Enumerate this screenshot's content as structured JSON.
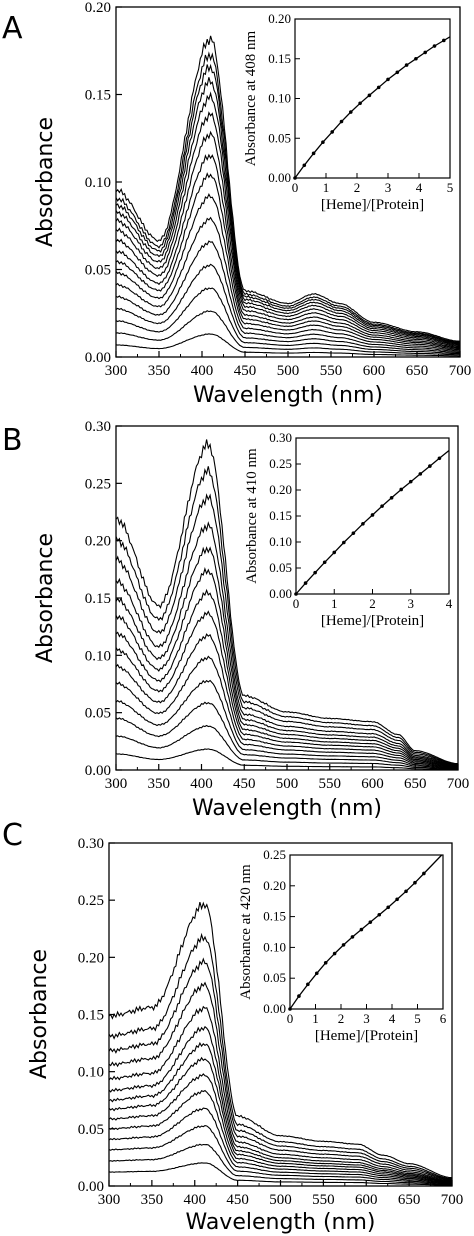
{
  "chart_data": [
    {
      "panel": "A",
      "type": "line",
      "xlabel": "Wavelength (nm)",
      "ylabel": "Absorbance",
      "xlim": [
        300,
        700
      ],
      "ylim": [
        0,
        0.2
      ],
      "xticks": [
        "300",
        "350",
        "400",
        "450",
        "500",
        "550",
        "600",
        "650",
        "700"
      ],
      "yticks": [
        "0.00",
        "0.05",
        "0.10",
        "0.15",
        "0.20"
      ],
      "peak_wavelength": 410,
      "spectra_peak_values": [
        0.013,
        0.026,
        0.039,
        0.052,
        0.065,
        0.078,
        0.091,
        0.103,
        0.114,
        0.126,
        0.137,
        0.147,
        0.156,
        0.164,
        0.171,
        0.18
      ],
      "shape": {
        "w300": 0.52,
        "w350": 0.36,
        "w410": 1.0,
        "w450": 0.2,
        "w500": 0.16,
        "w530": 0.19,
        "w560": 0.16,
        "w600": 0.1,
        "w650": 0.07,
        "w700": 0.04
      },
      "inset": {
        "type": "scatter",
        "xlabel": "[Heme]/[Protein]",
        "ylabel": "Absorbance at 408 nm",
        "xlim": [
          0,
          5
        ],
        "ylim": [
          0,
          0.2
        ],
        "xticks": [
          "0",
          "1",
          "2",
          "3",
          "4",
          "5"
        ],
        "yticks": [
          "0.00",
          "0.05",
          "0.10",
          "0.15",
          "0.20"
        ],
        "x": [
          0,
          0.3,
          0.6,
          0.9,
          1.2,
          1.5,
          1.8,
          2.1,
          2.4,
          2.7,
          3.0,
          3.3,
          3.6,
          3.9,
          4.2,
          4.5,
          4.8
        ],
        "y": [
          0,
          0.016,
          0.031,
          0.045,
          0.058,
          0.071,
          0.083,
          0.094,
          0.104,
          0.114,
          0.124,
          0.133,
          0.142,
          0.15,
          0.158,
          0.166,
          0.173
        ]
      }
    },
    {
      "panel": "B",
      "type": "line",
      "xlabel": "Wavelength (nm)",
      "ylabel": "Absorbance",
      "xlim": [
        300,
        700
      ],
      "ylim": [
        0,
        0.3
      ],
      "xticks": [
        "300",
        "350",
        "400",
        "450",
        "500",
        "550",
        "600",
        "650",
        "700"
      ],
      "yticks": [
        "0.00",
        "0.05",
        "0.10",
        "0.15",
        "0.20",
        "0.25",
        "0.30"
      ],
      "peak_wavelength": 408,
      "spectra_peak_values": [
        0.018,
        0.038,
        0.058,
        0.077,
        0.097,
        0.116,
        0.135,
        0.153,
        0.172,
        0.191,
        0.211,
        0.235,
        0.258,
        0.281
      ],
      "shape": {
        "w300": 0.77,
        "w350": 0.5,
        "w408": 1.0,
        "w450": 0.22,
        "w500": 0.17,
        "w550": 0.15,
        "w600": 0.14,
        "w630": 0.1,
        "w650": 0.05,
        "w700": 0.01
      },
      "inset": {
        "type": "scatter",
        "xlabel": "[Heme]/[Protein]",
        "ylabel": "Absorbance at 410 nm",
        "xlim": [
          0,
          4
        ],
        "ylim": [
          0,
          0.3
        ],
        "xticks": [
          "0",
          "1",
          "2",
          "3",
          "4"
        ],
        "yticks": [
          "0.00",
          "0.05",
          "0.10",
          "0.15",
          "0.20",
          "0.25",
          "0.30"
        ],
        "x": [
          0,
          0.25,
          0.5,
          0.75,
          1.0,
          1.25,
          1.5,
          1.75,
          2.0,
          2.25,
          2.5,
          2.75,
          3.0,
          3.25,
          3.5,
          3.75
        ],
        "y": [
          0,
          0.021,
          0.041,
          0.061,
          0.08,
          0.099,
          0.117,
          0.135,
          0.152,
          0.169,
          0.185,
          0.201,
          0.216,
          0.231,
          0.246,
          0.261
        ]
      }
    },
    {
      "panel": "C",
      "type": "line",
      "xlabel": "Wavelength (nm)",
      "ylabel": "Absorbance",
      "xlim": [
        300,
        700
      ],
      "ylim": [
        0,
        0.3
      ],
      "xticks": [
        "300",
        "350",
        "400",
        "450",
        "500",
        "550",
        "600",
        "650",
        "700"
      ],
      "yticks": [
        "0.00",
        "0.05",
        "0.10",
        "0.15",
        "0.20",
        "0.25",
        "0.30"
      ],
      "peak_wavelength": 412,
      "spectra_peak_values": [
        0.02,
        0.036,
        0.052,
        0.067,
        0.082,
        0.096,
        0.11,
        0.123,
        0.137,
        0.154,
        0.174,
        0.194,
        0.215,
        0.244
      ],
      "shape": {
        "w300": 0.6,
        "w350": 0.63,
        "w412": 1.0,
        "w450": 0.24,
        "w500": 0.17,
        "w550": 0.15,
        "w590": 0.14,
        "w620": 0.1,
        "w650": 0.07,
        "w700": 0.02
      },
      "inset": {
        "type": "scatter",
        "xlabel": "[Heme]/[Protein]",
        "ylabel": "Absorbance at 420 nm",
        "xlim": [
          0,
          6
        ],
        "ylim": [
          0,
          0.25
        ],
        "xticks": [
          "0",
          "1",
          "2",
          "3",
          "4",
          "5",
          "6"
        ],
        "yticks": [
          "0.00",
          "0.05",
          "0.10",
          "0.15",
          "0.20",
          "0.25"
        ],
        "x": [
          0,
          0.35,
          0.7,
          1.05,
          1.4,
          1.75,
          2.1,
          2.45,
          2.8,
          3.15,
          3.5,
          3.85,
          4.2,
          4.55,
          4.9,
          5.25
        ],
        "y": [
          0,
          0.021,
          0.04,
          0.058,
          0.075,
          0.09,
          0.104,
          0.117,
          0.129,
          0.141,
          0.153,
          0.165,
          0.178,
          0.191,
          0.205,
          0.22
        ]
      }
    }
  ]
}
